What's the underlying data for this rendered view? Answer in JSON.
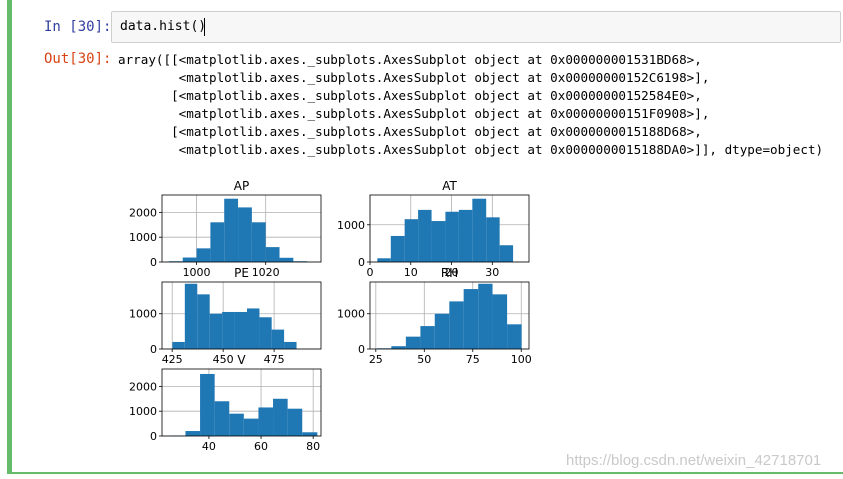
{
  "input_cell": {
    "prompt": "In [30]:",
    "code": "data.hist()"
  },
  "output_cell": {
    "prompt": "Out[30]:",
    "lines": [
      "array([[<matplotlib.axes._subplots.AxesSubplot object at 0x000000001531BD68>,",
      "        <matplotlib.axes._subplots.AxesSubplot object at 0x00000000152C6198>],",
      "       [<matplotlib.axes._subplots.AxesSubplot object at 0x00000000152584E0>,",
      "        <matplotlib.axes._subplots.AxesSubplot object at 0x00000000151F0908>],",
      "       [<matplotlib.axes._subplots.AxesSubplot object at 0x0000000015188D68>,",
      "        <matplotlib.axes._subplots.AxesSubplot object at 0x0000000015188DA0>]], dtype=object)"
    ]
  },
  "colors": {
    "bar": "#1f77b4",
    "grid": "#b0b0b0",
    "cell_border": "#66bb6a",
    "in_prompt": "#303f9f",
    "out_prompt": "#d84315"
  },
  "watermark": "https://blog.csdn.net/weixin_42718701",
  "chart_data": [
    {
      "type": "bar",
      "title": "AP",
      "xlim": [
        990,
        1036
      ],
      "ylim": [
        0,
        2700
      ],
      "xticks": [
        1000,
        1020
      ],
      "yticks": [
        0,
        1000,
        2000
      ],
      "bin_edges": [
        992,
        996,
        1000,
        1004,
        1008,
        1012,
        1016,
        1020,
        1024,
        1028,
        1032
      ],
      "values": [
        30,
        180,
        550,
        1600,
        2550,
        2200,
        1600,
        600,
        170,
        30
      ],
      "grid": true
    },
    {
      "type": "bar",
      "title": "AT",
      "xlim": [
        0,
        39
      ],
      "ylim": [
        0,
        1800
      ],
      "xticks": [
        0,
        10,
        20,
        30
      ],
      "yticks": [
        0,
        1000
      ],
      "bin_edges": [
        1.8,
        5.1,
        8.5,
        11.8,
        15.1,
        18.5,
        21.8,
        25.1,
        28.5,
        31.8,
        35.1
      ],
      "values": [
        100,
        700,
        1150,
        1400,
        1100,
        1350,
        1400,
        1700,
        1200,
        450
      ],
      "grid": true
    },
    {
      "type": "bar",
      "title": "PE",
      "xlim": [
        420,
        498
      ],
      "ylim": [
        0,
        1900
      ],
      "xticks": [
        425,
        450,
        475
      ],
      "yticks": [
        0,
        1000
      ],
      "bin_edges": [
        425.1,
        431.2,
        437.3,
        443.4,
        449.5,
        455.6,
        461.7,
        467.8,
        473.8,
        479.9,
        486
      ],
      "values": [
        200,
        1850,
        1550,
        1000,
        1050,
        1050,
        1150,
        900,
        550,
        200
      ],
      "grid": true
    },
    {
      "type": "bar",
      "title": "RH",
      "xlim": [
        22,
        104
      ],
      "ylim": [
        0,
        1900
      ],
      "xticks": [
        25,
        50,
        75,
        100
      ],
      "yticks": [
        0,
        1000
      ],
      "bin_edges": [
        25.6,
        33.0,
        40.5,
        48.0,
        55.4,
        62.9,
        70.3,
        77.8,
        85.2,
        92.7,
        100.2
      ],
      "values": [
        20,
        80,
        350,
        650,
        1000,
        1350,
        1700,
        1850,
        1550,
        700
      ],
      "grid": true
    },
    {
      "type": "bar",
      "title": "V",
      "xlim": [
        22,
        83
      ],
      "ylim": [
        0,
        2700
      ],
      "xticks": [
        40,
        60,
        80
      ],
      "yticks": [
        0,
        1000,
        2000
      ],
      "bin_edges": [
        25.4,
        31.0,
        36.6,
        42.2,
        47.8,
        53.4,
        59.0,
        64.6,
        70.2,
        75.8,
        81.6
      ],
      "values": [
        20,
        200,
        2500,
        1400,
        900,
        700,
        1150,
        1500,
        1100,
        150
      ],
      "grid": true
    }
  ]
}
